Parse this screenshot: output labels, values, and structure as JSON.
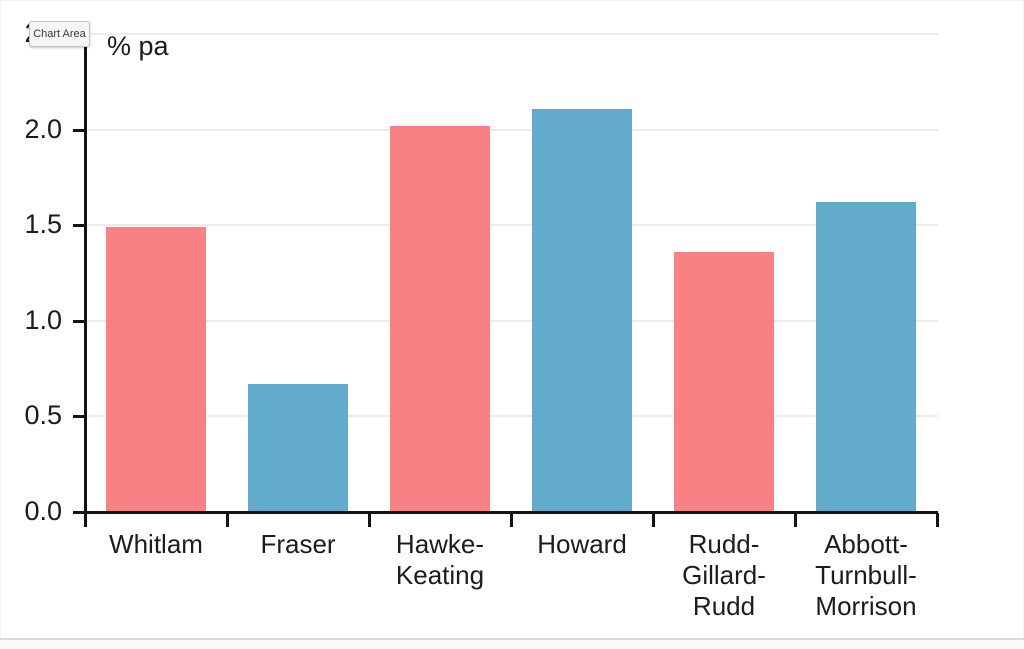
{
  "tooltip": {
    "text": "Chart Area"
  },
  "chart_data": {
    "type": "bar",
    "title": "% pa",
    "ylabel": "% pa",
    "xlabel": "",
    "categories": [
      "Whitlam",
      "Fraser",
      "Hawke-Keating",
      "Howard",
      "Rudd-Gillard-Rudd",
      "Abbott-Turnbull-Morrison"
    ],
    "category_label_lines": [
      [
        "Whitlam"
      ],
      [
        "Fraser"
      ],
      [
        "Hawke-",
        "Keating"
      ],
      [
        "Howard"
      ],
      [
        "Rudd-",
        "Gillard-",
        "Rudd"
      ],
      [
        "Abbott-",
        "Turnbull-",
        "Morrison"
      ]
    ],
    "values": [
      1.49,
      0.67,
      2.02,
      2.11,
      1.36,
      1.62
    ],
    "bar_colors": [
      "#fa8183",
      "#62abca",
      "#fa8183",
      "#62abca",
      "#fa8183",
      "#62abca"
    ],
    "ylim": [
      0,
      2.5
    ],
    "ytick_step": 0.5,
    "ytick_labels": [
      "0.0",
      "0.5",
      "1.0",
      "1.5",
      "2.0",
      "2.5"
    ],
    "grid": true,
    "legend_position": "none",
    "colors": {
      "bar_red": "#fa8183",
      "bar_blue": "#62abca",
      "gridline": "#ededeb",
      "axis": "#141414",
      "text": "#1c1c1c",
      "tooltip_bg": "#f7f5f3",
      "tooltip_border": "#c6c4c2"
    }
  }
}
